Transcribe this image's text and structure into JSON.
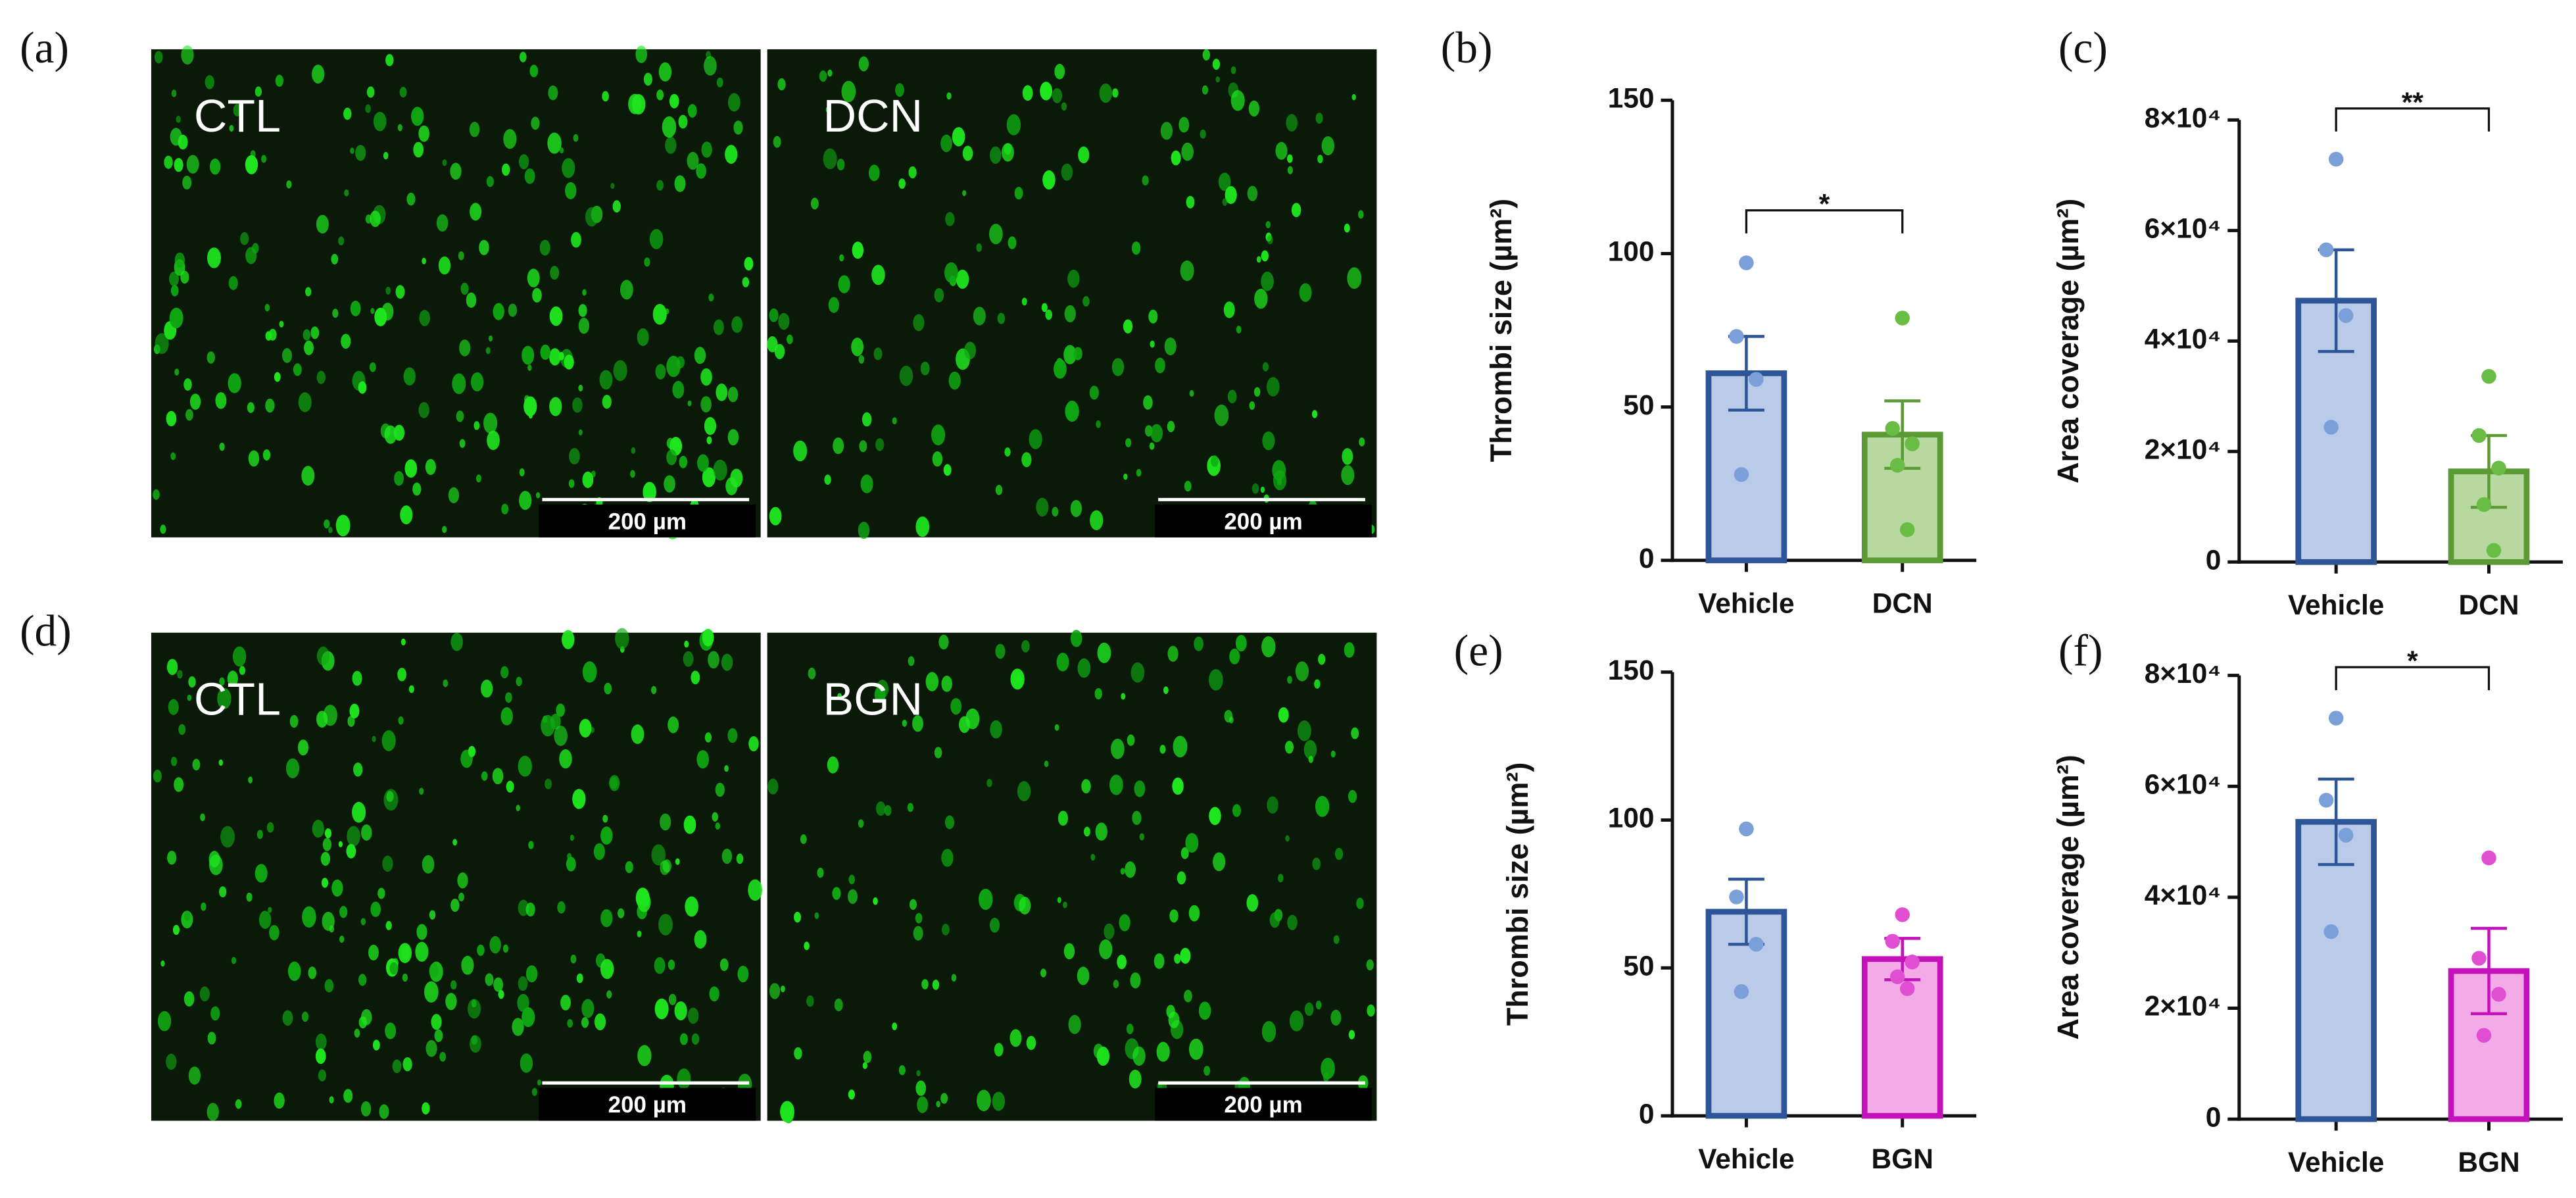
{
  "images": [
    {
      "panel_label": "(a)",
      "left": "CTL",
      "right": "DCN",
      "scale_bar": "200 µm"
    },
    {
      "panel_label": "(d)",
      "left": "CTL",
      "right": "BGN",
      "scale_bar": "200 µm"
    }
  ],
  "chart_data": [
    {
      "type": "bar",
      "panel_label": "(b)",
      "y_label": "Thrombi size (µm²)",
      "categories": [
        "Vehicle",
        "DCN"
      ],
      "values": [
        61,
        41
      ],
      "errors": [
        12,
        11
      ],
      "points": [
        [
          97,
          73,
          59,
          28
        ],
        [
          79,
          43,
          38,
          31,
          10
        ]
      ],
      "fill_colors": [
        "#b9cbe8",
        "#b7d9a0"
      ],
      "edge_colors": [
        "#2e5597",
        "#5b9a35"
      ],
      "point_colors": [
        "#7b9fd9",
        "#6abd44"
      ],
      "significance": "*",
      "ylim": [
        0,
        150
      ],
      "yticks": [
        0,
        50,
        100,
        150
      ]
    },
    {
      "type": "bar",
      "panel_label": "(c)",
      "y_label": "Area coverage (µm²)",
      "categories": [
        "Vehicle",
        "DCN"
      ],
      "values": [
        47300,
        16400
      ],
      "errors": [
        9200,
        6500
      ],
      "points": [
        [
          72900,
          56500,
          44600,
          24400
        ],
        [
          33600,
          22900,
          17000,
          10400,
          2100
        ]
      ],
      "fill_colors": [
        "#b9cbe8",
        "#b7d9a0"
      ],
      "edge_colors": [
        "#2e5597",
        "#5b9a35"
      ],
      "point_colors": [
        "#7b9fd9",
        "#6abd44"
      ],
      "significance": "**",
      "ylim": [
        0,
        80000
      ],
      "yticks": [
        0,
        {
          "value": 20000,
          "label": "2×10⁴"
        },
        {
          "value": 40000,
          "label": "4×10⁴"
        },
        {
          "value": 60000,
          "label": "6×10⁴"
        },
        {
          "value": 80000,
          "label": "8×10⁴"
        }
      ]
    },
    {
      "type": "bar",
      "panel_label": "(e)",
      "y_label": "Thrombi size (µm²)",
      "categories": [
        "Vehicle",
        "BGN"
      ],
      "values": [
        69,
        53
      ],
      "errors": [
        11,
        7
      ],
      "points": [
        [
          97,
          74,
          58,
          42
        ],
        [
          68,
          59,
          52,
          47,
          43
        ]
      ],
      "fill_colors": [
        "#b9cbe8",
        "#f3abe8"
      ],
      "edge_colors": [
        "#2e5597",
        "#c412bb"
      ],
      "point_colors": [
        "#7b9fd9",
        "#e04fd2"
      ],
      "ylim": [
        0,
        150
      ],
      "yticks": [
        0,
        50,
        100,
        150
      ]
    },
    {
      "type": "bar",
      "panel_label": "(f)",
      "y_label": "Area coverage (µm²)",
      "categories": [
        "Vehicle",
        "BGN"
      ],
      "values": [
        53600,
        26700
      ],
      "errors": [
        7700,
        7700
      ],
      "points": [
        [
          72300,
          57500,
          51200,
          33800
        ],
        [
          47100,
          29000,
          22500,
          15100
        ]
      ],
      "fill_colors": [
        "#b9cbe8",
        "#f3abe8"
      ],
      "edge_colors": [
        "#2e5597",
        "#c412bb"
      ],
      "point_colors": [
        "#7b9fd9",
        "#e04fd2"
      ],
      "significance": "*",
      "ylim": [
        0,
        80000
      ],
      "yticks": [
        0,
        {
          "value": 20000,
          "label": "2×10⁴"
        },
        {
          "value": 40000,
          "label": "4×10⁴"
        },
        {
          "value": 60000,
          "label": "6×10⁴"
        },
        {
          "value": 80000,
          "label": "8×10⁴"
        }
      ]
    }
  ]
}
